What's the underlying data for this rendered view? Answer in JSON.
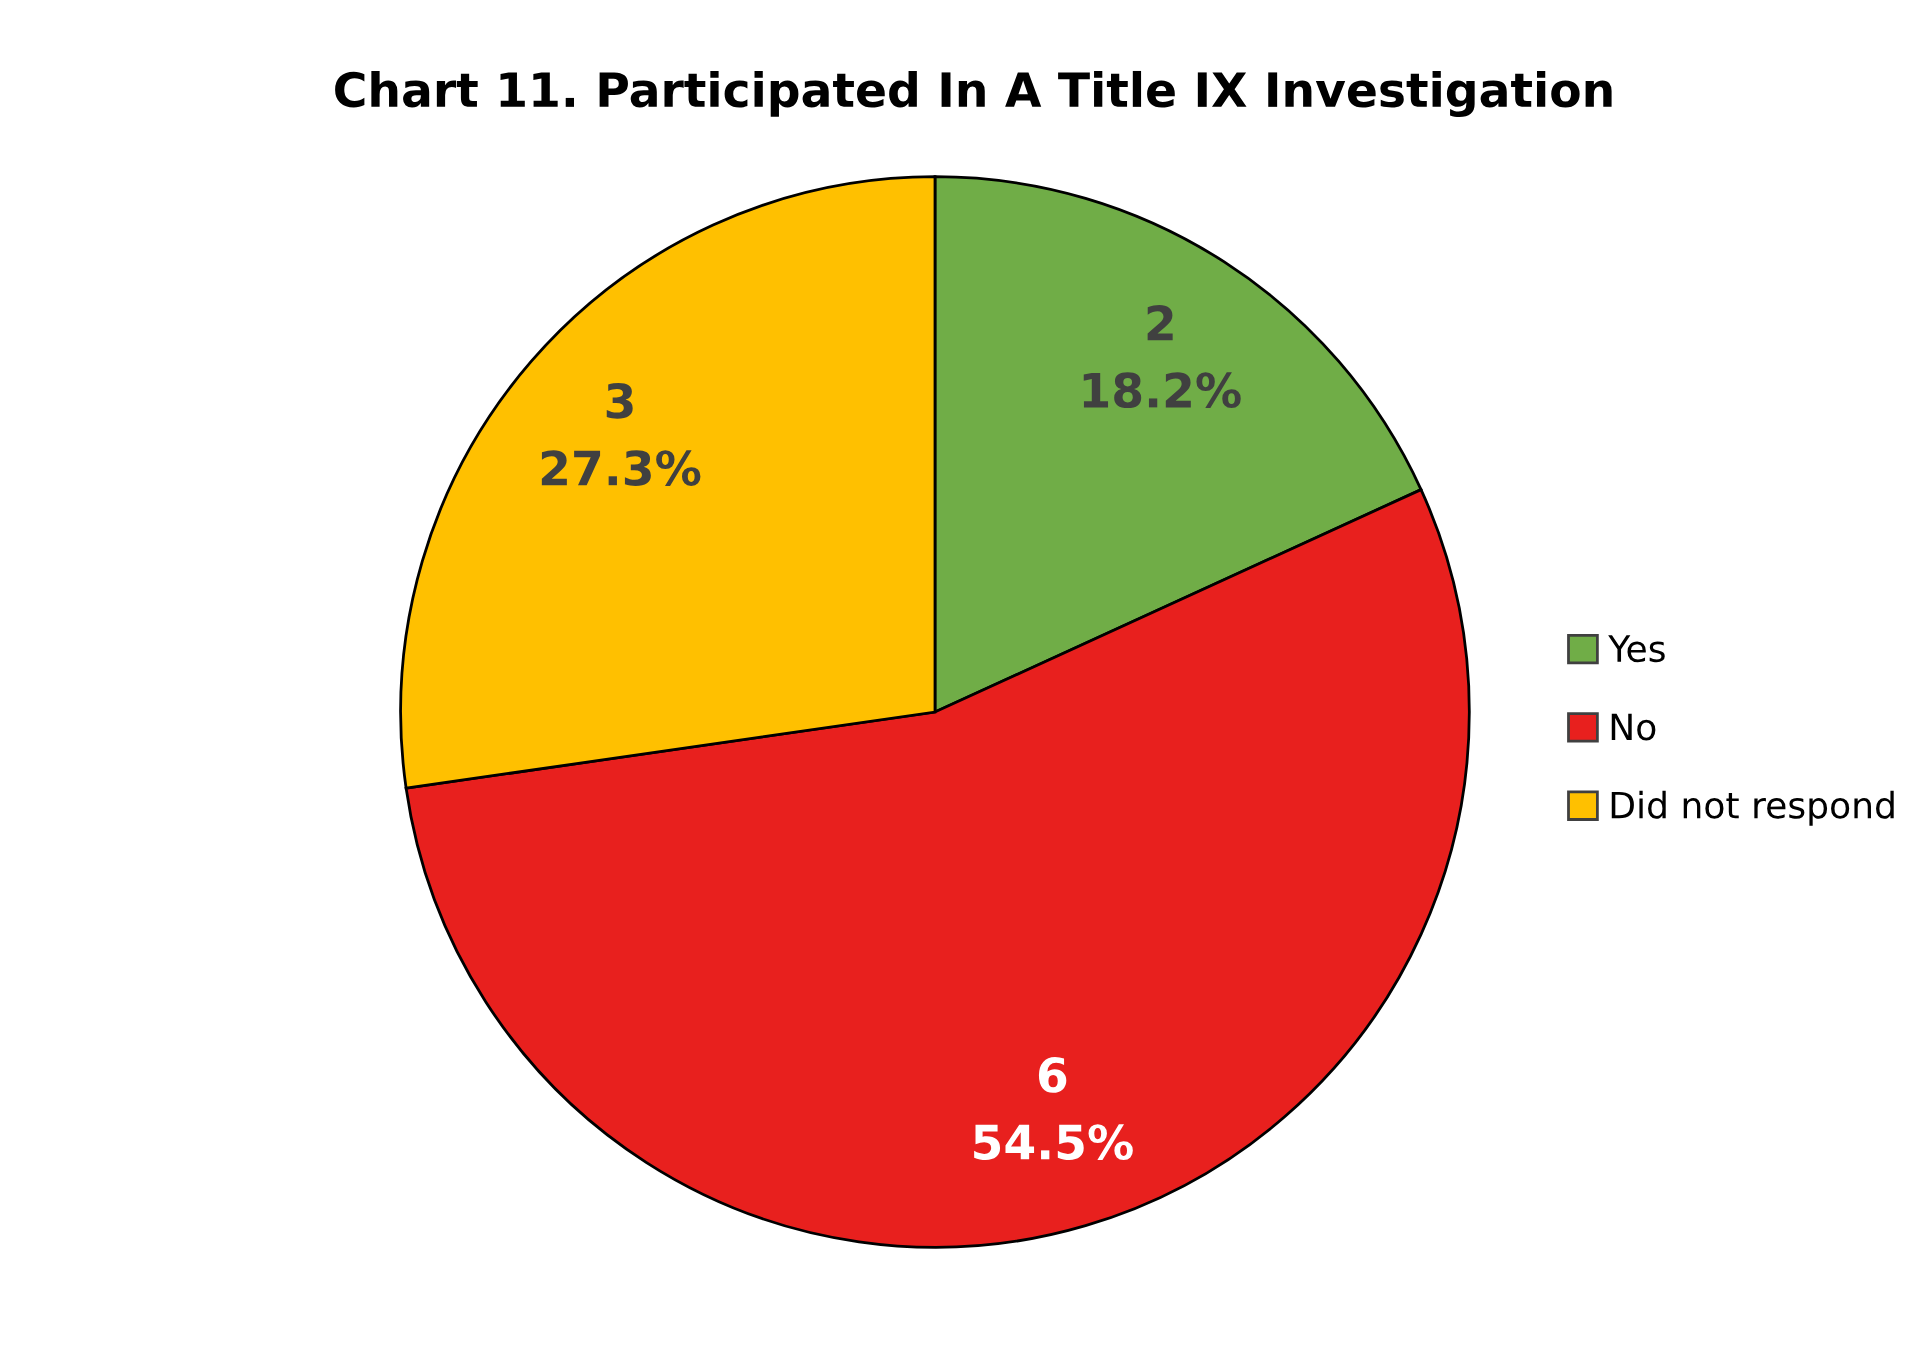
{
  "chart_data": {
    "type": "pie",
    "title": "Chart 11. Participated In A Title IX Investigation",
    "categories": [
      "Yes",
      "No",
      "Did not respond"
    ],
    "values": [
      2,
      6,
      3
    ],
    "colors": [
      "#70ad47",
      "#e8201e",
      "#ffc000"
    ],
    "value_labels": [
      "2\n18.2%",
      "6\n54.5%",
      "3\n27.3%"
    ],
    "legend": "right"
  }
}
